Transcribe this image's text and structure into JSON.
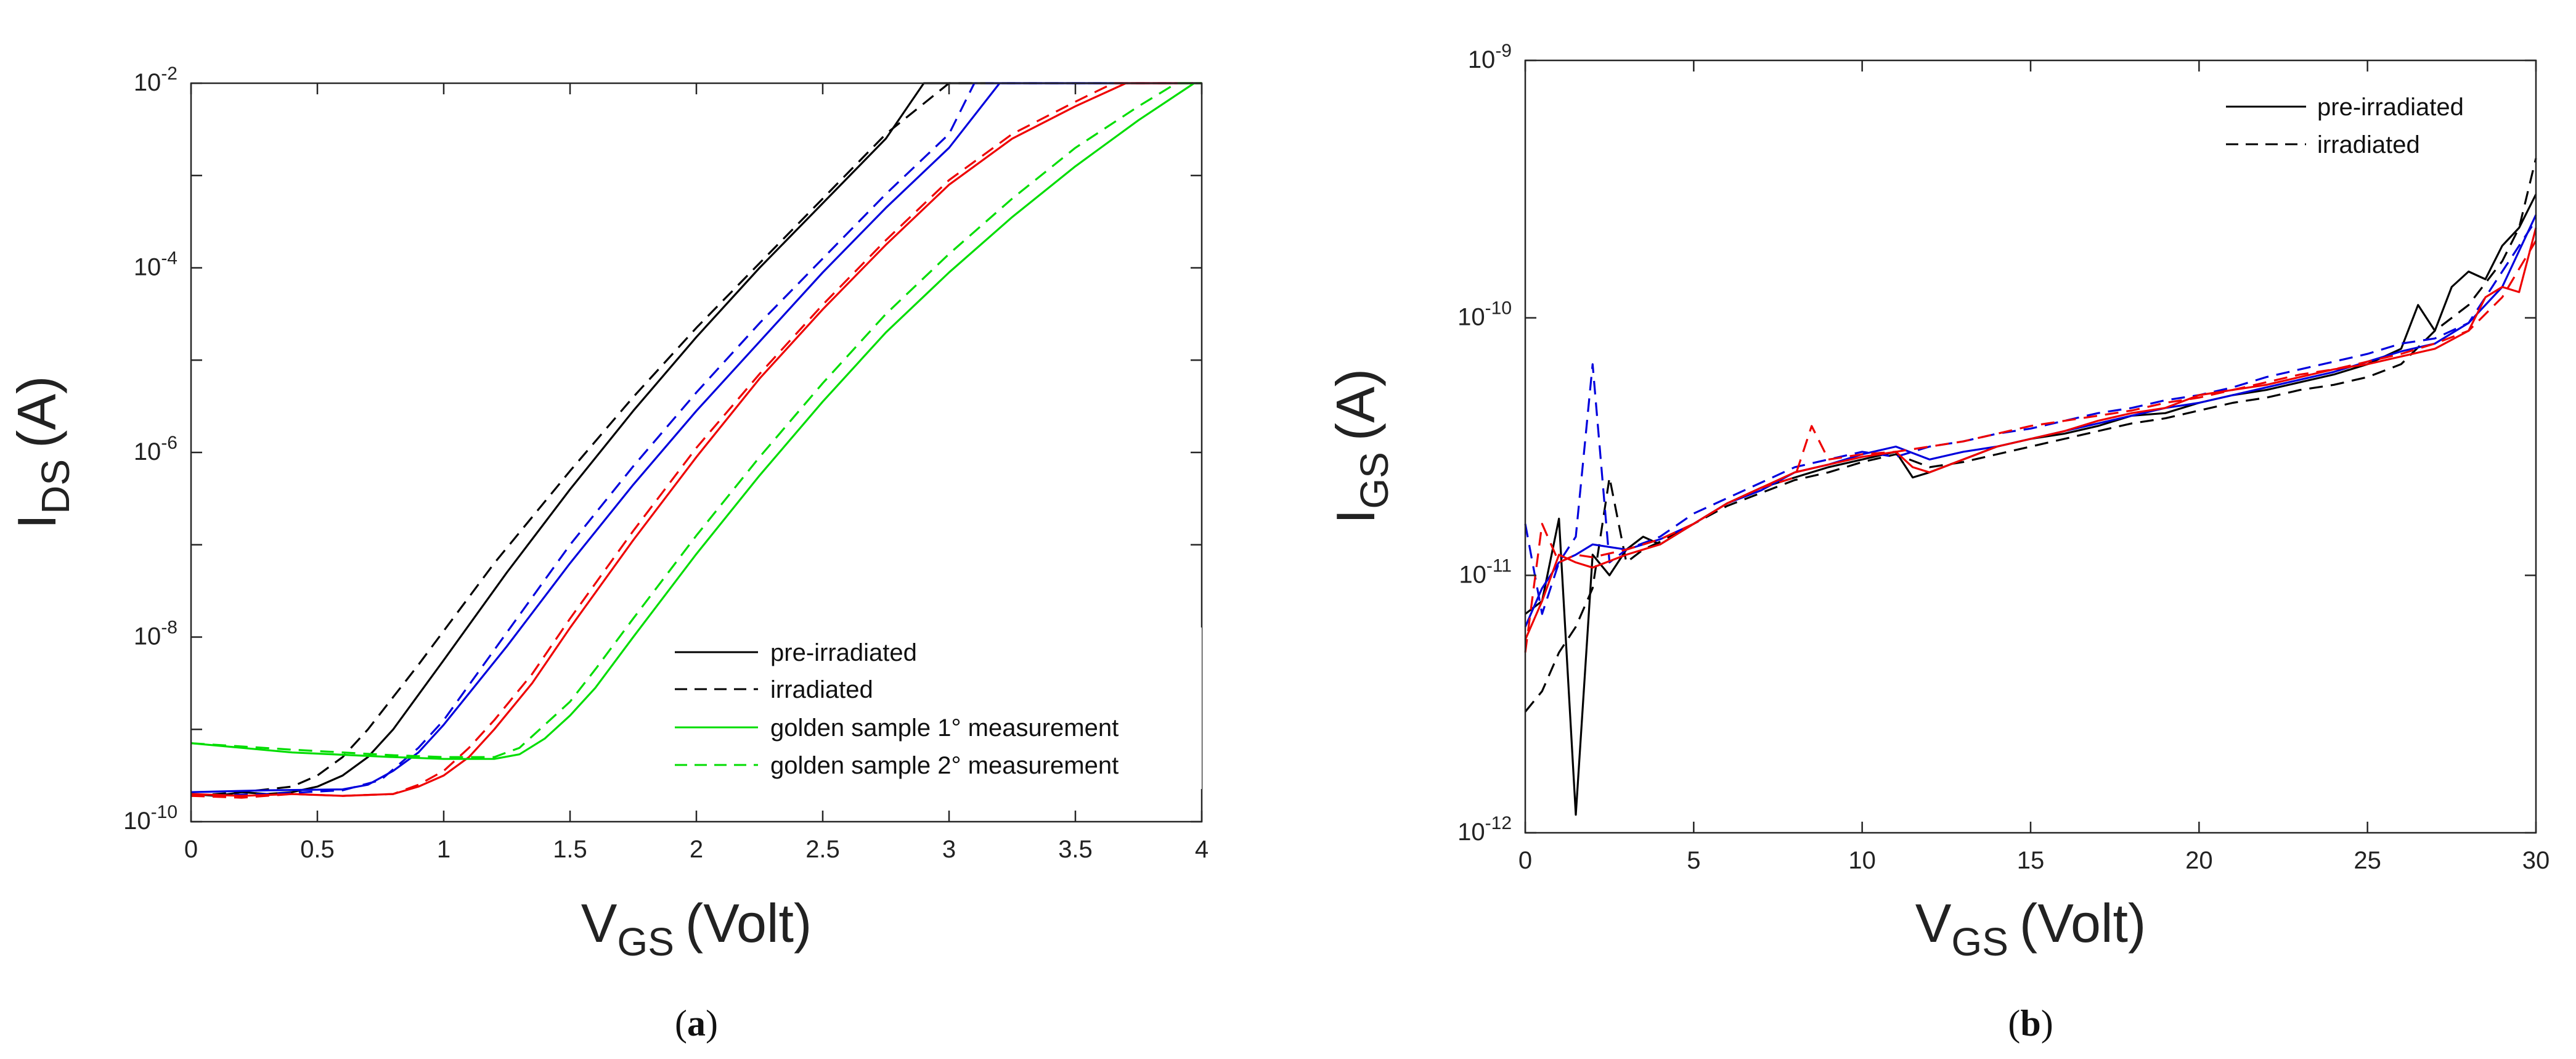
{
  "chart_data": [
    {
      "type": "line",
      "panel": "a",
      "caption_letter": "a",
      "xlabel_main": "V",
      "xlabel_sub": "GS",
      "xlabel_unit": "(Volt)",
      "ylabel_main": "I",
      "ylabel_sub": "DS",
      "ylabel_unit": "(A)",
      "xlim": [
        0,
        4
      ],
      "ylim_log10": [
        -10,
        -2
      ],
      "yscale": "log",
      "x_ticks": [
        0,
        0.5,
        1,
        1.5,
        2,
        2.5,
        3,
        3.5,
        4
      ],
      "x_tick_labels": [
        "0",
        "0.5",
        "1",
        "1.5",
        "2",
        "2.5",
        "3",
        "3.5",
        "4"
      ],
      "y_tick_exponents": [
        -2,
        -4,
        -6,
        -8,
        -10
      ],
      "y_tick_labels": [
        {
          "base": "10",
          "exp": "-2"
        },
        {
          "base": "10",
          "exp": "-4"
        },
        {
          "base": "10",
          "exp": "-6"
        },
        {
          "base": "10",
          "exp": "-8"
        },
        {
          "base": "10",
          "exp": "-10"
        }
      ],
      "legend_position": "bottom-right",
      "legend": [
        {
          "label": "pre-irradiated",
          "color": "#000000",
          "dash": "solid"
        },
        {
          "label": "irradiated",
          "color": "#000000",
          "dash": "dashed"
        },
        {
          "label": "golden sample 1° measurement",
          "color": "#00dd00",
          "dash": "solid"
        },
        {
          "label": "golden sample 2° measurement",
          "color": "#00dd00",
          "dash": "dashed"
        }
      ],
      "series": [
        {
          "name": "black pre-irradiated",
          "color": "#000000",
          "dash": "solid",
          "x": [
            0,
            0.1,
            0.2,
            0.3,
            0.4,
            0.5,
            0.6,
            0.7,
            0.8,
            1.0,
            1.25,
            1.5,
            1.75,
            2.0,
            2.25,
            2.5,
            2.75,
            2.9,
            4.0
          ],
          "log10y": [
            -9.7,
            -9.72,
            -9.68,
            -9.7,
            -9.68,
            -9.62,
            -9.5,
            -9.3,
            -9.0,
            -8.25,
            -7.3,
            -6.4,
            -5.55,
            -4.75,
            -4.0,
            -3.3,
            -2.6,
            -2.0,
            -2.0
          ]
        },
        {
          "name": "black irradiated",
          "color": "#000000",
          "dash": "dashed",
          "x": [
            0,
            0.2,
            0.4,
            0.5,
            0.6,
            0.7,
            0.9,
            1.2,
            1.5,
            1.75,
            2.0,
            2.25,
            2.5,
            2.75,
            3.0,
            4.0
          ],
          "log10y": [
            -9.72,
            -9.68,
            -9.62,
            -9.5,
            -9.3,
            -9.0,
            -8.3,
            -7.2,
            -6.2,
            -5.4,
            -4.65,
            -3.95,
            -3.25,
            -2.55,
            -2.0,
            -2.0
          ]
        },
        {
          "name": "blue pre-irradiated",
          "color": "#0000dd",
          "dash": "solid",
          "x": [
            0,
            0.3,
            0.6,
            0.7,
            0.8,
            0.9,
            1.0,
            1.25,
            1.5,
            1.75,
            2.0,
            2.25,
            2.5,
            2.75,
            3.0,
            3.2,
            4.0
          ],
          "log10y": [
            -9.68,
            -9.66,
            -9.65,
            -9.6,
            -9.45,
            -9.25,
            -8.95,
            -8.1,
            -7.2,
            -6.35,
            -5.55,
            -4.8,
            -4.05,
            -3.35,
            -2.7,
            -2.0,
            -2.0
          ]
        },
        {
          "name": "blue irradiated",
          "color": "#0000dd",
          "dash": "dashed",
          "x": [
            0,
            0.3,
            0.6,
            0.75,
            0.9,
            1.0,
            1.25,
            1.5,
            1.75,
            2.0,
            2.25,
            2.5,
            2.75,
            3.0,
            3.1,
            4.0
          ],
          "log10y": [
            -9.72,
            -9.7,
            -9.66,
            -9.55,
            -9.2,
            -8.9,
            -7.95,
            -7.0,
            -6.15,
            -5.35,
            -4.6,
            -3.9,
            -3.2,
            -2.55,
            -2.0,
            -2.0
          ]
        },
        {
          "name": "red pre-irradiated",
          "color": "#ee0000",
          "dash": "solid",
          "x": [
            0,
            0.2,
            0.4,
            0.6,
            0.8,
            0.9,
            1.0,
            1.1,
            1.2,
            1.35,
            1.5,
            1.75,
            2.0,
            2.25,
            2.5,
            2.75,
            3.0,
            3.25,
            3.5,
            3.7,
            4.0
          ],
          "log10y": [
            -9.7,
            -9.72,
            -9.7,
            -9.72,
            -9.7,
            -9.62,
            -9.5,
            -9.3,
            -9.0,
            -8.5,
            -7.9,
            -6.95,
            -6.05,
            -5.2,
            -4.45,
            -3.75,
            -3.1,
            -2.6,
            -2.25,
            -2.0,
            -2.0
          ]
        },
        {
          "name": "red irradiated",
          "color": "#ee0000",
          "dash": "dashed",
          "x": [
            0,
            0.2,
            0.4,
            0.6,
            0.8,
            0.9,
            1.0,
            1.1,
            1.2,
            1.35,
            1.5,
            1.75,
            2.0,
            2.25,
            2.5,
            2.75,
            3.0,
            3.25,
            3.5,
            3.65,
            4.0
          ],
          "log10y": [
            -9.72,
            -9.74,
            -9.7,
            -9.72,
            -9.7,
            -9.6,
            -9.45,
            -9.2,
            -8.9,
            -8.4,
            -7.8,
            -6.85,
            -5.95,
            -5.15,
            -4.4,
            -3.7,
            -3.05,
            -2.55,
            -2.2,
            -2.0,
            -2.0
          ]
        },
        {
          "name": "golden sample 1° measurement",
          "color": "#00dd00",
          "dash": "solid",
          "x": [
            0,
            0.4,
            0.8,
            1.0,
            1.2,
            1.3,
            1.4,
            1.5,
            1.6,
            1.75,
            2.0,
            2.25,
            2.5,
            2.75,
            3.0,
            3.25,
            3.5,
            3.75,
            3.97,
            4.0
          ],
          "log10y": [
            -9.15,
            -9.25,
            -9.3,
            -9.32,
            -9.32,
            -9.27,
            -9.1,
            -8.85,
            -8.55,
            -8.0,
            -7.1,
            -6.25,
            -5.45,
            -4.7,
            -4.05,
            -3.45,
            -2.9,
            -2.4,
            -2.0,
            -2.0
          ]
        },
        {
          "name": "golden sample 2° measurement",
          "color": "#00dd00",
          "dash": "dashed",
          "x": [
            0,
            0.4,
            0.8,
            1.0,
            1.2,
            1.3,
            1.4,
            1.5,
            1.6,
            1.75,
            2.0,
            2.25,
            2.5,
            2.75,
            3.0,
            3.25,
            3.5,
            3.75,
            3.9,
            4.0
          ],
          "log10y": [
            -9.15,
            -9.22,
            -9.28,
            -9.3,
            -9.3,
            -9.2,
            -8.95,
            -8.7,
            -8.35,
            -7.8,
            -6.9,
            -6.05,
            -5.25,
            -4.5,
            -3.85,
            -3.25,
            -2.7,
            -2.25,
            -2.0,
            -2.0
          ]
        }
      ]
    },
    {
      "type": "line",
      "panel": "b",
      "caption_letter": "b",
      "xlabel_main": "V",
      "xlabel_sub": "GS",
      "xlabel_unit": "(Volt)",
      "ylabel_main": "I",
      "ylabel_sub": "GS",
      "ylabel_unit": "(A)",
      "xlim": [
        0,
        30
      ],
      "ylim_log10": [
        -12,
        -9
      ],
      "yscale": "log",
      "x_ticks": [
        0,
        5,
        10,
        15,
        20,
        25,
        30
      ],
      "x_tick_labels": [
        "0",
        "5",
        "10",
        "15",
        "20",
        "25",
        "30"
      ],
      "y_tick_exponents": [
        -9,
        -10,
        -11,
        -12
      ],
      "y_tick_labels": [
        {
          "base": "10",
          "exp": "-9"
        },
        {
          "base": "10",
          "exp": "-10"
        },
        {
          "base": "10",
          "exp": "-11"
        },
        {
          "base": "10",
          "exp": "-12"
        }
      ],
      "legend_position": "top-right",
      "legend": [
        {
          "label": "pre-irradiated",
          "color": "#000000",
          "dash": "solid"
        },
        {
          "label": "irradiated",
          "color": "#000000",
          "dash": "dashed"
        }
      ],
      "series": [
        {
          "name": "black pre-irradiated",
          "color": "#000000",
          "dash": "solid",
          "x": [
            0,
            0.5,
            1,
            1.5,
            2,
            2.5,
            3,
            3.5,
            4,
            5,
            6,
            7,
            8,
            9,
            10,
            11,
            11.5,
            12,
            13,
            14,
            15,
            16,
            17,
            18,
            19,
            20,
            21,
            22,
            23,
            24,
            25,
            25.5,
            26,
            26.5,
            27,
            27.5,
            28,
            28.5,
            29,
            29.5,
            30
          ],
          "log10y": [
            -11.15,
            -11.1,
            -10.78,
            -11.93,
            -10.92,
            -11.0,
            -10.9,
            -10.85,
            -10.88,
            -10.8,
            -10.72,
            -10.66,
            -10.62,
            -10.58,
            -10.55,
            -10.52,
            -10.62,
            -10.6,
            -10.55,
            -10.5,
            -10.47,
            -10.45,
            -10.42,
            -10.38,
            -10.37,
            -10.33,
            -10.3,
            -10.28,
            -10.25,
            -10.22,
            -10.18,
            -10.15,
            -10.12,
            -9.95,
            -10.05,
            -9.88,
            -9.82,
            -9.85,
            -9.72,
            -9.65,
            -9.52
          ]
        },
        {
          "name": "black irradiated",
          "color": "#000000",
          "dash": "dashed",
          "x": [
            0,
            0.5,
            1,
            1.5,
            2,
            2.5,
            3,
            3.5,
            4,
            5,
            6,
            7,
            8,
            9,
            10,
            11,
            12,
            13,
            14,
            15,
            16,
            17,
            18,
            19,
            20,
            21,
            22,
            23,
            24,
            25,
            26,
            27,
            28,
            29,
            29.5,
            30
          ],
          "log10y": [
            -11.53,
            -11.45,
            -11.3,
            -11.2,
            -11.05,
            -10.62,
            -10.95,
            -10.9,
            -10.87,
            -10.8,
            -10.73,
            -10.68,
            -10.63,
            -10.6,
            -10.56,
            -10.53,
            -10.58,
            -10.56,
            -10.53,
            -10.5,
            -10.47,
            -10.44,
            -10.41,
            -10.39,
            -10.36,
            -10.33,
            -10.31,
            -10.28,
            -10.26,
            -10.23,
            -10.18,
            -10.05,
            -9.95,
            -9.78,
            -9.65,
            -9.38
          ]
        },
        {
          "name": "blue pre-irradiated",
          "color": "#0000dd",
          "dash": "solid",
          "x": [
            0,
            0.5,
            1,
            1.5,
            2,
            3,
            4,
            5,
            6,
            7,
            8,
            9,
            10,
            11,
            12,
            13,
            14,
            15,
            16,
            17,
            18,
            19,
            20,
            21,
            22,
            23,
            24,
            25,
            26,
            27,
            28,
            29,
            30
          ],
          "log10y": [
            -11.2,
            -11.05,
            -10.95,
            -10.92,
            -10.88,
            -10.9,
            -10.86,
            -10.8,
            -10.72,
            -10.67,
            -10.6,
            -10.57,
            -10.53,
            -10.5,
            -10.55,
            -10.52,
            -10.5,
            -10.47,
            -10.44,
            -10.41,
            -10.38,
            -10.35,
            -10.33,
            -10.3,
            -10.27,
            -10.24,
            -10.21,
            -10.17,
            -10.13,
            -10.1,
            -10.02,
            -9.88,
            -9.6
          ]
        },
        {
          "name": "blue irradiated",
          "color": "#0000dd",
          "dash": "dashed",
          "x": [
            0,
            0.5,
            1,
            1.5,
            2,
            2.5,
            3,
            4,
            5,
            6,
            7,
            8,
            9,
            10,
            11,
            12,
            13,
            14,
            15,
            16,
            17,
            18,
            19,
            20,
            21,
            22,
            23,
            24,
            25,
            26,
            27,
            28,
            29,
            30
          ],
          "log10y": [
            -10.8,
            -11.15,
            -10.95,
            -10.85,
            -10.18,
            -10.95,
            -10.9,
            -10.85,
            -10.76,
            -10.7,
            -10.64,
            -10.58,
            -10.55,
            -10.52,
            -10.54,
            -10.5,
            -10.48,
            -10.45,
            -10.43,
            -10.4,
            -10.37,
            -10.35,
            -10.32,
            -10.3,
            -10.27,
            -10.23,
            -10.2,
            -10.17,
            -10.14,
            -10.1,
            -10.08,
            -10.02,
            -9.82,
            -9.62
          ]
        },
        {
          "name": "red pre-irradiated",
          "color": "#ee0000",
          "dash": "solid",
          "x": [
            0,
            0.5,
            1,
            1.5,
            2,
            3,
            4,
            5,
            6,
            7,
            8,
            9,
            10,
            11,
            11.5,
            12,
            13,
            14,
            15,
            16,
            17,
            18,
            19,
            20,
            21,
            22,
            23,
            24,
            25,
            26,
            27,
            28,
            28.5,
            29,
            29.5,
            30
          ],
          "log10y": [
            -11.25,
            -11.1,
            -10.92,
            -10.95,
            -10.97,
            -10.92,
            -10.88,
            -10.8,
            -10.72,
            -10.66,
            -10.6,
            -10.57,
            -10.54,
            -10.52,
            -10.58,
            -10.6,
            -10.55,
            -10.5,
            -10.47,
            -10.44,
            -10.4,
            -10.37,
            -10.35,
            -10.3,
            -10.28,
            -10.26,
            -10.23,
            -10.2,
            -10.18,
            -10.15,
            -10.12,
            -10.05,
            -9.92,
            -9.88,
            -9.9,
            -9.65
          ]
        },
        {
          "name": "red irradiated",
          "color": "#ee0000",
          "dash": "dashed",
          "x": [
            0,
            0.5,
            1,
            1.5,
            2,
            3,
            4,
            5,
            6,
            7,
            8,
            8.5,
            9,
            10,
            11,
            12,
            13,
            14,
            15,
            16,
            17,
            18,
            19,
            20,
            21,
            22,
            23,
            24,
            25,
            26,
            27,
            28,
            29,
            30
          ],
          "log10y": [
            -11.3,
            -10.8,
            -10.95,
            -10.92,
            -10.93,
            -10.9,
            -10.86,
            -10.8,
            -10.72,
            -10.66,
            -10.62,
            -10.42,
            -10.55,
            -10.53,
            -10.52,
            -10.5,
            -10.48,
            -10.45,
            -10.42,
            -10.4,
            -10.38,
            -10.36,
            -10.33,
            -10.31,
            -10.28,
            -10.25,
            -10.22,
            -10.2,
            -10.17,
            -10.14,
            -10.1,
            -10.05,
            -9.92,
            -9.7
          ]
        }
      ]
    }
  ]
}
